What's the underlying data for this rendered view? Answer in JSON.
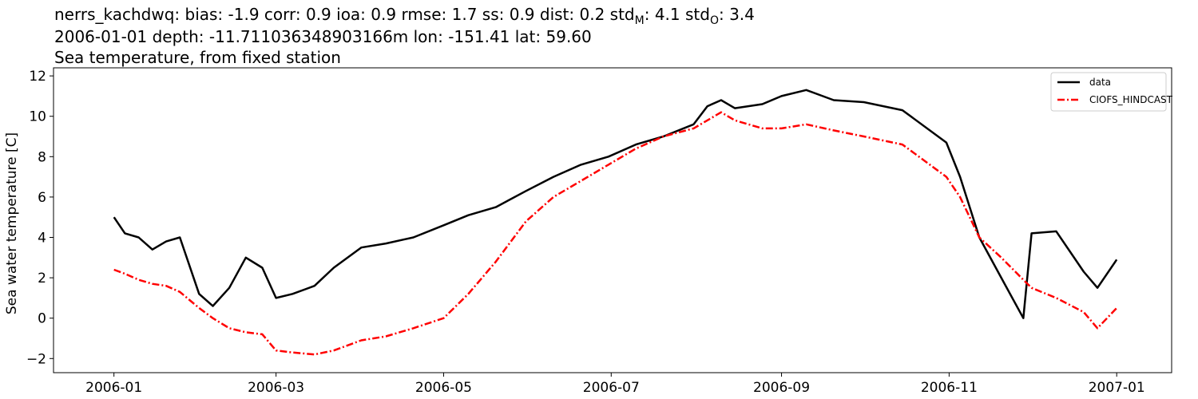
{
  "chart_data": {
    "type": "line",
    "title_lines": [
      "nerrs_kachdwq: bias: -1.9  corr: 0.9  ioa: 0.9  rmse: 1.7  ss: 0.9  dist: 0.2  std",
      "2006-01-01 depth: -11.711036348903166m lon: -151.41 lat: 59.60",
      "Sea temperature, from fixed station"
    ],
    "title_std_parts": {
      "std_model_sub": "M",
      "std_model_value": ": 4.1  std",
      "std_obs_sub": "O",
      "std_obs_value": ": 3.4"
    },
    "xlabel": "",
    "ylabel": "Sea water temperature [C]",
    "xlim": [
      "2005-12-10",
      "2007-01-21"
    ],
    "ylim": [
      -2.7,
      12.4
    ],
    "x_ticks": [
      "2006-01",
      "2006-03",
      "2006-05",
      "2006-07",
      "2006-09",
      "2006-11",
      "2007-01"
    ],
    "y_ticks": [
      -2,
      0,
      2,
      4,
      6,
      8,
      10,
      12
    ],
    "grid": false,
    "legend_position": "top-right",
    "series": [
      {
        "name": "data",
        "color": "#000000",
        "style": "solid",
        "x": [
          "2006-01-01",
          "2006-01-05",
          "2006-01-10",
          "2006-01-15",
          "2006-01-20",
          "2006-01-25",
          "2006-02-01",
          "2006-02-06",
          "2006-02-12",
          "2006-02-18",
          "2006-02-24",
          "2006-03-01",
          "2006-03-07",
          "2006-03-15",
          "2006-03-22",
          "2006-04-01",
          "2006-04-10",
          "2006-04-20",
          "2006-05-01",
          "2006-05-10",
          "2006-05-20",
          "2006-05-31",
          "2006-06-10",
          "2006-06-20",
          "2006-06-30",
          "2006-07-10",
          "2006-07-20",
          "2006-07-31",
          "2006-08-05",
          "2006-08-10",
          "2006-08-15",
          "2006-08-25",
          "2006-09-01",
          "2006-09-10",
          "2006-09-20",
          "2006-10-01",
          "2006-10-15",
          "2006-10-31",
          "2006-11-05",
          "2006-11-12",
          "2006-11-20",
          "2006-11-28",
          "2006-12-01",
          "2006-12-10",
          "2006-12-20",
          "2006-12-25",
          "2007-01-01"
        ],
        "y": [
          5.0,
          4.2,
          4.0,
          3.4,
          3.8,
          4.0,
          1.2,
          0.6,
          1.5,
          3.0,
          2.5,
          1.0,
          1.2,
          1.6,
          2.5,
          3.5,
          3.7,
          4.0,
          4.6,
          5.1,
          5.5,
          6.3,
          7.0,
          7.6,
          8.0,
          8.6,
          9.0,
          9.6,
          10.5,
          10.8,
          10.4,
          10.6,
          11.0,
          11.3,
          10.8,
          10.7,
          10.3,
          8.7,
          7.0,
          4.0,
          2.0,
          0.0,
          4.2,
          4.3,
          2.3,
          1.5,
          2.9
        ]
      },
      {
        "name": "CIOFS_HINDCAST",
        "color": "#ff0000",
        "style": "dash-dot",
        "x": [
          "2006-01-01",
          "2006-01-05",
          "2006-01-10",
          "2006-01-15",
          "2006-01-20",
          "2006-01-25",
          "2006-02-01",
          "2006-02-06",
          "2006-02-12",
          "2006-02-18",
          "2006-02-24",
          "2006-03-01",
          "2006-03-07",
          "2006-03-15",
          "2006-03-22",
          "2006-04-01",
          "2006-04-10",
          "2006-04-20",
          "2006-05-01",
          "2006-05-10",
          "2006-05-20",
          "2006-05-31",
          "2006-06-10",
          "2006-06-20",
          "2006-06-30",
          "2006-07-10",
          "2006-07-20",
          "2006-07-31",
          "2006-08-05",
          "2006-08-10",
          "2006-08-15",
          "2006-08-25",
          "2006-09-01",
          "2006-09-10",
          "2006-09-20",
          "2006-10-01",
          "2006-10-15",
          "2006-10-31",
          "2006-11-05",
          "2006-11-12",
          "2006-11-20",
          "2006-11-28",
          "2006-12-01",
          "2006-12-10",
          "2006-12-20",
          "2006-12-25",
          "2007-01-01"
        ],
        "y": [
          2.4,
          2.2,
          1.9,
          1.7,
          1.6,
          1.3,
          0.5,
          0.0,
          -0.5,
          -0.7,
          -0.8,
          -1.6,
          -1.7,
          -1.8,
          -1.6,
          -1.1,
          -0.9,
          -0.5,
          0.0,
          1.2,
          2.8,
          4.8,
          6.0,
          6.8,
          7.6,
          8.4,
          9.0,
          9.4,
          9.8,
          10.2,
          9.8,
          9.4,
          9.4,
          9.6,
          9.3,
          9.0,
          8.6,
          7.0,
          6.0,
          4.0,
          3.0,
          1.9,
          1.5,
          1.0,
          0.3,
          -0.5,
          0.5
        ]
      }
    ]
  }
}
